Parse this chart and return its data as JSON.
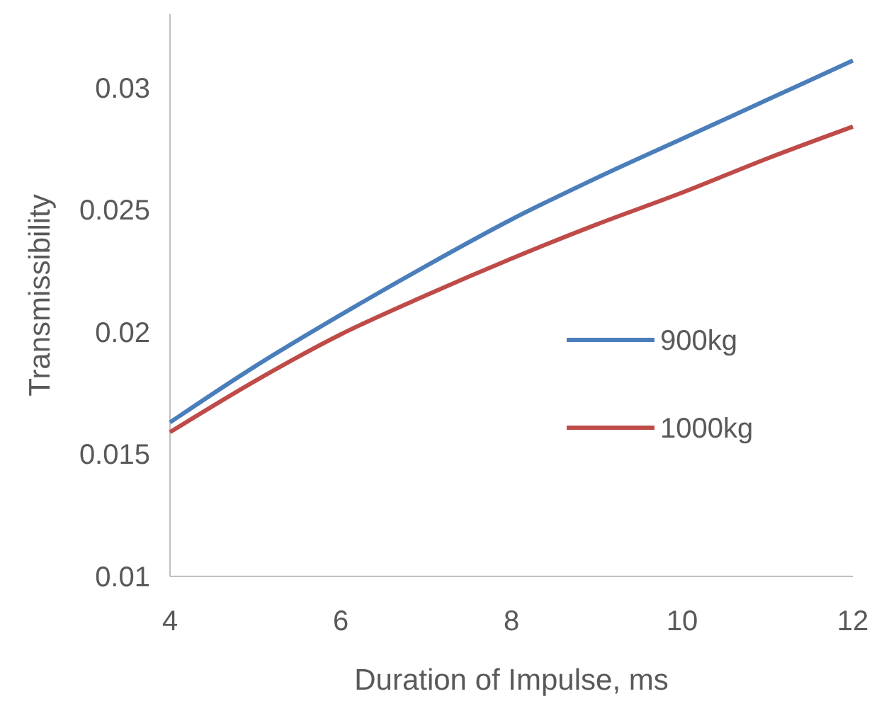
{
  "chart_data": {
    "type": "line",
    "xlabel": "Duration of Impulse, ms",
    "ylabel": "Transmissibility",
    "x": [
      4,
      5,
      6,
      7,
      8,
      9,
      10,
      11,
      12
    ],
    "series": [
      {
        "name": "900kg",
        "color": "#4a7ebb",
        "values": [
          0.0163,
          0.0186,
          0.0207,
          0.0227,
          0.0246,
          0.0263,
          0.0279,
          0.0295,
          0.0311
        ]
      },
      {
        "name": "1000kg",
        "color": "#be4b48",
        "values": [
          0.0159,
          0.018,
          0.0199,
          0.0215,
          0.023,
          0.0244,
          0.0257,
          0.0271,
          0.0284
        ]
      }
    ],
    "xlim": [
      4,
      12
    ],
    "xticks": [
      4,
      6,
      8,
      10,
      12
    ],
    "ylim": [
      0.01,
      0.033
    ],
    "yticks": [
      0.01,
      0.015,
      0.02,
      0.025,
      0.03
    ],
    "grid": false,
    "legend": "right",
    "marker": "none",
    "line_style": "solid"
  }
}
